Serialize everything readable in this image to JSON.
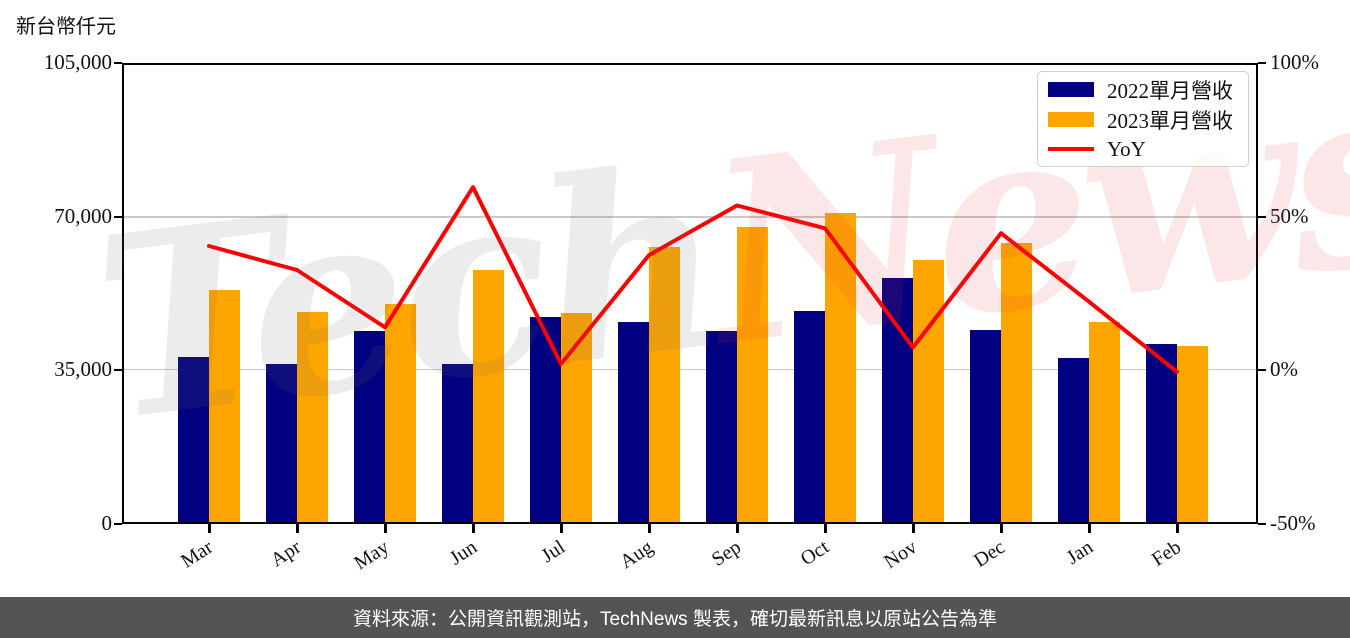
{
  "title": {
    "unit_label": "新台幣仟元"
  },
  "watermark": {
    "part1": "Tech",
    "part2": "News"
  },
  "footer": {
    "text": "資料來源：公開資訊觀測站，TechNews 製表，確切最新訊息以原站公告為準",
    "bg_color": "#545456",
    "text_color": "#ffffff"
  },
  "colors": {
    "grid": "#c9c9c9",
    "spine": "#000000",
    "bar_2022": "#000080",
    "bar_2023": "#FFA500",
    "yoy_line": "#FF0000"
  },
  "chart_data": {
    "type": "bar",
    "title": "",
    "ylabel": "新台幣仟元",
    "categories": [
      "Mar",
      "Apr",
      "May",
      "Jun",
      "Jul",
      "Aug",
      "Sep",
      "Oct",
      "Nov",
      "Dec",
      "Jan",
      "Feb"
    ],
    "series": [
      {
        "name": "2022單月營收",
        "color": "#000080",
        "values": [
          37900,
          36400,
          44000,
          36200,
          47200,
          46000,
          44000,
          48500,
          56000,
          44200,
          37600,
          40800
        ]
      },
      {
        "name": "2023單月營收",
        "color": "#FFA500",
        "values": [
          53300,
          48300,
          50100,
          57900,
          48100,
          63300,
          67700,
          71000,
          60100,
          64000,
          46000,
          40500
        ]
      }
    ],
    "line_series": {
      "name": "YoY",
      "color": "#FF0000",
      "axis": "right",
      "values_pct": [
        40.6,
        32.7,
        13.9,
        59.9,
        1.9,
        37.6,
        53.9,
        46.4,
        7.3,
        44.8,
        22.3,
        -0.7
      ]
    },
    "left_axis": {
      "min": 0,
      "max": 105000,
      "ticks": [
        {
          "value": 105000,
          "label": "105,000"
        },
        {
          "value": 70000,
          "label": "70,000"
        },
        {
          "value": 35000,
          "label": "35,000"
        },
        {
          "value": 0,
          "label": "0"
        }
      ]
    },
    "right_axis": {
      "min": -50,
      "max": 100,
      "ticks": [
        {
          "value": 100,
          "label": "100%"
        },
        {
          "value": 50,
          "label": "50%"
        },
        {
          "value": 0,
          "label": "0%"
        },
        {
          "value": -50,
          "label": "-50%"
        }
      ]
    },
    "grid": "horizontal",
    "legend_position": "top-right"
  }
}
